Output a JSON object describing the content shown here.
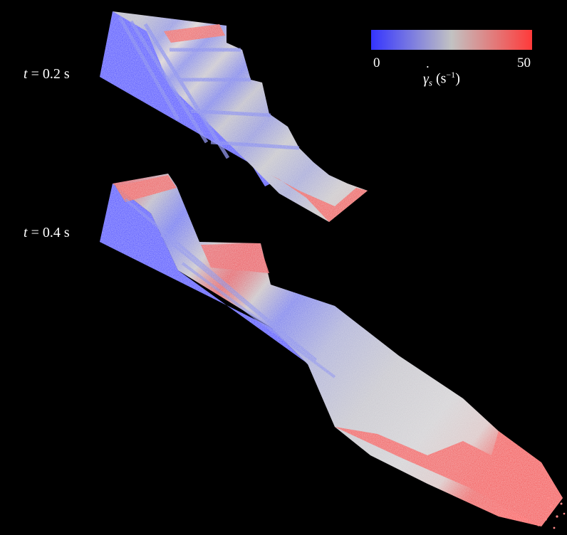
{
  "snapshots": [
    {
      "var": "t",
      "rest": " = 0.2 s"
    },
    {
      "var": "t",
      "rest": " = 0.4 s"
    }
  ],
  "colorbar": {
    "min_label": "0",
    "max_label": "50",
    "symbol": "γ",
    "subscript": "s",
    "unit_open": " (s",
    "unit_power": "−1",
    "unit_close": ")",
    "min_value": 0,
    "max_value": 50,
    "colors": {
      "low": "#3434ff",
      "mid": "#c2c2c2",
      "high": "#ff3a3a"
    }
  },
  "background_color": "#000000"
}
